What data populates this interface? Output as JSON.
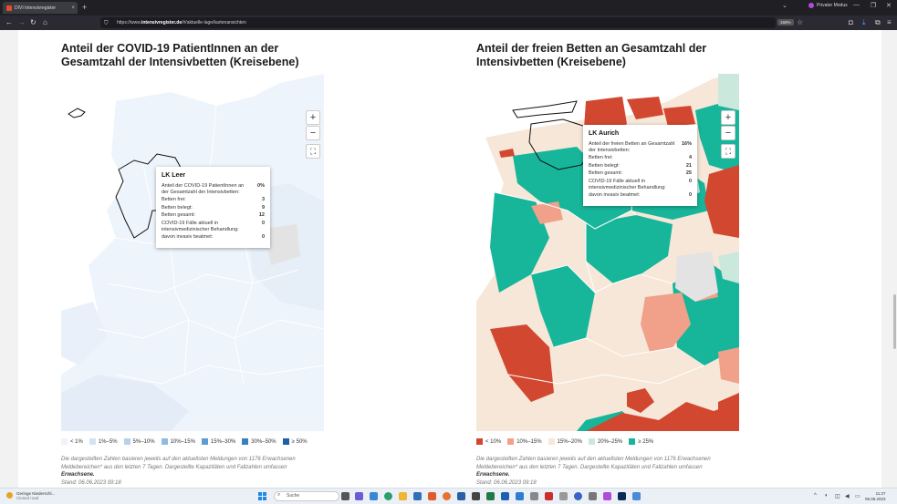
{
  "browser": {
    "tab_title": "DIVI Intensivregister",
    "new_tab": "+",
    "private_mode": "Privater Modus",
    "url_prefix": "https://www.",
    "url_domain": "intensivregister.de",
    "url_path": "/#/aktuelle-lage/kartenansichten",
    "zoom": "150%"
  },
  "left_panel": {
    "title": "Anteil der COVID-19 PatientInnen an der Gesamtzahl der Intensivbetten (Kreisebene)",
    "zoom_in": "+",
    "zoom_out": "−",
    "fullscreen": "⛶",
    "tooltip": {
      "title": "LK Leer",
      "rows": [
        {
          "label": "Anteil der COVID-19 PatientInnen an der Gesamtzahl der Intensivbetten:",
          "value": "0%"
        },
        {
          "label": "Betten frei:",
          "value": "3"
        },
        {
          "label": "Betten belegt:",
          "value": "9"
        },
        {
          "label": "Betten gesamt:",
          "value": "12"
        },
        {
          "label": "COVID-19 Fälle aktuell in intensivmedizinischer Behandlung:",
          "value": "0"
        },
        {
          "label": "davon invasiv beatmet:",
          "value": "0"
        }
      ]
    },
    "legend": [
      {
        "label": "< 1%",
        "color": "#eef4fb"
      },
      {
        "label": "1%–5%",
        "color": "#d4e3f3"
      },
      {
        "label": "5%–10%",
        "color": "#b5d0ec"
      },
      {
        "label": "10%–15%",
        "color": "#8fbbe3"
      },
      {
        "label": "15%–30%",
        "color": "#5d9bd3"
      },
      {
        "label": "30%–50%",
        "color": "#3a7fc2"
      },
      {
        "label": "≥ 50%",
        "color": "#1f5fa3"
      }
    ],
    "note_text": "Die dargestellten Zahlen basieren jeweils auf den aktuellsten Meldungen von 1176 Erwachsenen Meldebereichen* aus den letzten 7 Tagen. Dargestellte Kapazitäten und Fallzahlen umfassen",
    "note_bold": "Erwachsene.",
    "note_stand": "Stand: 06.06.2023 09:18"
  },
  "right_panel": {
    "title": "Anteil der freien Betten an Gesamtzahl der Intensivbetten (Kreisebene)",
    "zoom_in": "+",
    "zoom_out": "−",
    "fullscreen": "⛶",
    "tooltip": {
      "title": "LK Aurich",
      "rows": [
        {
          "label": "Anteil der freien Betten an Gesamtzahl der Intensivbetten:",
          "value": "16%"
        },
        {
          "label": "Betten frei:",
          "value": "4"
        },
        {
          "label": "Betten belegt:",
          "value": "21"
        },
        {
          "label": "Betten gesamt:",
          "value": "25"
        },
        {
          "label": "COVID-19 Fälle aktuell in intensivmedizinischer Behandlung:",
          "value": "0"
        },
        {
          "label": "davon invasiv beatmet:",
          "value": "0"
        }
      ]
    },
    "legend": [
      {
        "label": "< 10%",
        "color": "#d2472f"
      },
      {
        "label": "10%–15%",
        "color": "#f1a08a"
      },
      {
        "label": "15%–20%",
        "color": "#f6e7d8"
      },
      {
        "label": "20%–25%",
        "color": "#cbe8dd"
      },
      {
        "label": "≥ 25%",
        "color": "#17b59a"
      }
    ],
    "note_text": "Die dargestellten Zahlen basieren jeweils auf den aktuellsten Meldungen von 1176 Erwachsenen Meldebereichen* aus den letzten 7 Tagen. Dargestellte Kapazitäten und Fallzahlen umfassen",
    "note_bold": "Erwachsene.",
    "note_stand": "Stand: 06.06.2023 09:18"
  },
  "taskbar": {
    "weather_line1": "Geringe Niederschl...",
    "weather_line2": "Closed road",
    "search_placeholder": "Suche",
    "time": "11:27",
    "date": "06.06.2023"
  }
}
